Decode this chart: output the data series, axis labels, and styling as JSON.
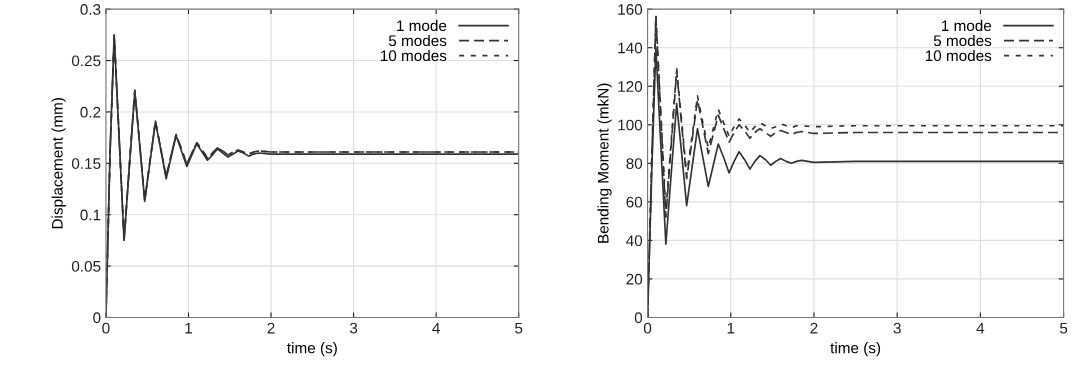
{
  "chart_data": [
    {
      "type": "line",
      "xlabel": "time (s)",
      "ylabel": "Displacement (mm)",
      "xlim": [
        0,
        5
      ],
      "xticks": [
        0,
        1,
        2,
        3,
        4,
        5
      ],
      "ylim": [
        0,
        0.3
      ],
      "yticks": [
        0,
        0.05,
        0.1,
        0.15,
        0.2,
        0.25,
        0.3
      ],
      "grid": true,
      "legend": "top right",
      "marker": "none",
      "x": [
        0,
        0.05,
        0.1,
        0.16,
        0.22,
        0.285,
        0.35,
        0.41,
        0.47,
        0.535,
        0.6,
        0.665,
        0.73,
        0.79,
        0.85,
        0.915,
        0.98,
        1.04,
        1.1,
        1.165,
        1.23,
        1.29,
        1.35,
        1.415,
        1.48,
        1.54,
        1.6,
        1.665,
        1.73,
        1.79,
        1.85,
        2.0,
        2.5,
        5
      ],
      "series": [
        {
          "name": "1 mode",
          "color": "#333333",
          "line_style": "solid",
          "values": [
            0,
            0.16,
            0.275,
            0.175,
            0.075,
            0.148,
            0.22,
            0.167,
            0.113,
            0.152,
            0.19,
            0.163,
            0.135,
            0.156,
            0.177,
            0.162,
            0.147,
            0.158,
            0.169,
            0.161,
            0.153,
            0.158,
            0.164,
            0.16,
            0.156,
            0.159,
            0.162,
            0.16,
            0.157,
            0.159,
            0.16,
            0.159,
            0.159,
            0.159
          ]
        },
        {
          "name": "5 modes",
          "color": "#333333",
          "line_style": "dashed",
          "values": [
            0,
            0.16,
            0.274,
            0.175,
            0.076,
            0.149,
            0.221,
            0.168,
            0.114,
            0.153,
            0.191,
            0.164,
            0.137,
            0.158,
            0.178,
            0.164,
            0.149,
            0.16,
            0.17,
            0.163,
            0.155,
            0.16,
            0.165,
            0.162,
            0.158,
            0.161,
            0.163,
            0.161,
            0.159,
            0.161,
            0.162,
            0.161,
            0.161,
            0.161
          ]
        },
        {
          "name": "10 modes",
          "color": "#333333",
          "line_style": "dotted",
          "values": [
            0,
            0.16,
            0.274,
            0.175,
            0.076,
            0.149,
            0.221,
            0.168,
            0.114,
            0.153,
            0.191,
            0.164,
            0.137,
            0.158,
            0.178,
            0.164,
            0.149,
            0.16,
            0.17,
            0.163,
            0.155,
            0.16,
            0.165,
            0.162,
            0.158,
            0.161,
            0.163,
            0.161,
            0.159,
            0.161,
            0.162,
            0.161,
            0.161,
            0.161
          ]
        }
      ]
    },
    {
      "type": "line",
      "xlabel": "time (s)",
      "ylabel": "Bending Moment (mkN)",
      "xlim": [
        0,
        5
      ],
      "xticks": [
        0,
        1,
        2,
        3,
        4,
        5
      ],
      "ylim": [
        0,
        160
      ],
      "yticks": [
        0,
        20,
        40,
        60,
        80,
        100,
        120,
        140,
        160
      ],
      "grid": true,
      "legend": "top right",
      "marker": "none",
      "x": [
        0,
        0.05,
        0.1,
        0.16,
        0.22,
        0.285,
        0.35,
        0.41,
        0.47,
        0.535,
        0.6,
        0.665,
        0.73,
        0.79,
        0.85,
        0.915,
        0.98,
        1.04,
        1.1,
        1.165,
        1.23,
        1.29,
        1.35,
        1.415,
        1.48,
        1.54,
        1.6,
        1.665,
        1.73,
        1.79,
        1.85,
        2.0,
        2.5,
        5
      ],
      "series": [
        {
          "name": "1 mode",
          "color": "#333333",
          "line_style": "solid",
          "values": [
            0,
            75,
            140,
            89,
            38,
            75,
            111,
            85,
            58,
            78,
            98,
            83,
            68,
            79,
            90,
            83,
            75,
            81,
            86,
            82,
            77,
            81,
            84,
            82,
            79,
            81,
            82.5,
            81,
            80,
            81,
            81.5,
            80.5,
            81,
            81
          ]
        },
        {
          "name": "5 modes",
          "color": "#333333",
          "line_style": "dashed",
          "values": [
            0,
            80,
            156,
            104,
            52,
            90,
            128,
            100,
            72,
            92,
            113,
            99,
            85,
            95,
            105,
            98,
            91,
            96,
            100,
            97,
            93,
            96,
            98,
            96,
            94,
            96,
            97,
            96,
            95,
            96,
            96.5,
            95.5,
            96,
            96
          ]
        },
        {
          "name": "10 modes",
          "color": "#333333",
          "line_style": "dotted",
          "values": [
            0,
            82,
            157,
            106,
            55,
            92,
            129,
            102,
            74,
            94,
            115,
            101,
            88,
            98,
            108,
            101,
            94,
            99,
            103,
            100,
            96,
            99,
            101,
            99.5,
            98,
            99,
            100.5,
            99.5,
            98.5,
            99.5,
            99.5,
            99,
            99.5,
            99.5
          ]
        }
      ]
    }
  ]
}
